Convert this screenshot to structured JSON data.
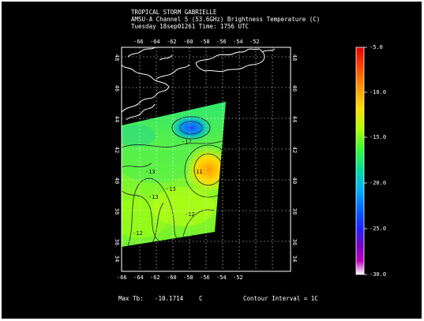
{
  "title": {
    "line1": "TROPICAL STORM GABRIELLE",
    "line2": "AMSU-A Channel 5 (53.6GHz) Brightness Temperature (C)",
    "line3": "Tuesday 18sep01261 Time: 1756 UTC"
  },
  "map": {
    "lon_ticks": [
      "-66",
      "-64",
      "-62",
      "-60",
      "-58",
      "-56",
      "-54",
      "-52"
    ],
    "lat_ticks": [
      "48",
      "46",
      "44",
      "42",
      "40",
      "38",
      "36",
      "34"
    ],
    "contour_labels": [
      "-12",
      "-13",
      "-11",
      "-12",
      "-13",
      "-13",
      "-12",
      "-12"
    ]
  },
  "colorbar": {
    "tick_labels": [
      "-5.0",
      "-10.0",
      "-15.0",
      "-20.0",
      "-25.0",
      "-30.0"
    ],
    "stop_colors": [
      "#e00000",
      "#ff4000",
      "#ff9000",
      "#ffe000",
      "#b0ff00",
      "#30ff30",
      "#00e0a0",
      "#00b0ff",
      "#0060ff",
      "#2020ff",
      "#8000c0",
      "#c000c0",
      "#ffffff"
    ]
  },
  "footer": {
    "max_tb_label": "Max Tb:",
    "max_tb_value": "-10.1714",
    "max_tb_unit": "C",
    "contour_interval": "Contour Interval = 1C"
  }
}
